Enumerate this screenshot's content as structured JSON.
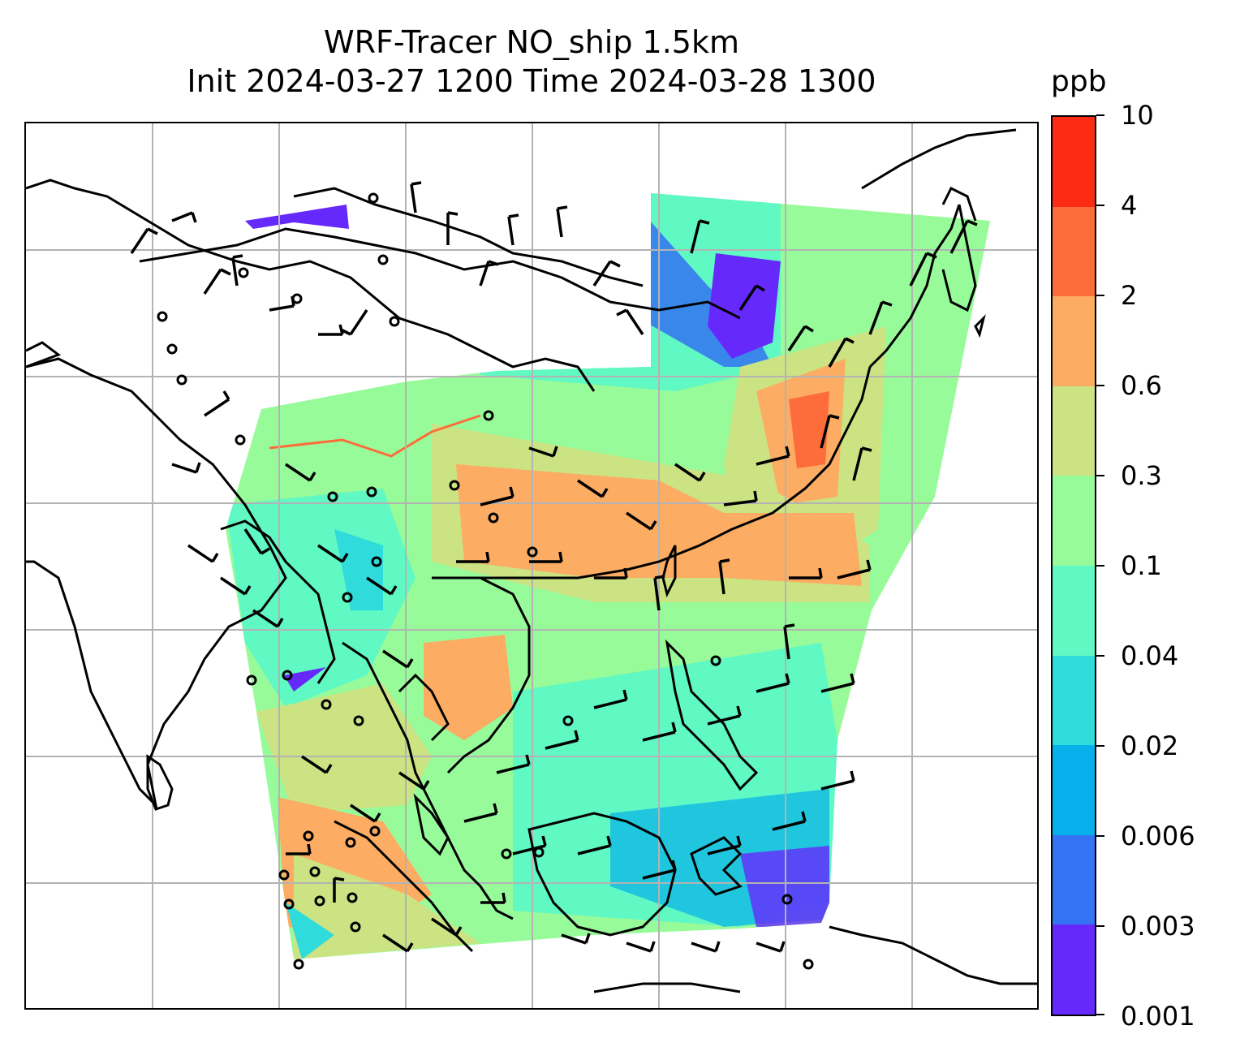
{
  "title": {
    "line1": "WRF-Tracer NO_ship 1.5km",
    "line2": "Init 2024-03-27 1200 Time 2024-03-28 1300"
  },
  "colorbar": {
    "unit": "ppb",
    "levels": [
      "0.001",
      "0.003",
      "0.006",
      "0.02",
      "0.04",
      "0.1",
      "0.3",
      "0.6",
      "2",
      "4",
      "10"
    ],
    "colors": [
      "#6629fb",
      "#3473f3",
      "#06b0ea",
      "#2fdbdb",
      "#60f8c3",
      "#98fb9a",
      "#cbe382",
      "#fcac63",
      "#fc6d3b",
      "#fd2a14"
    ]
  },
  "map": {
    "map_type": "concentration field with wind barbs, coastlines and lat/lon gridlines",
    "gridlines": true,
    "coastline_color": "#000000",
    "grid_color": "#b3b3b3"
  }
}
